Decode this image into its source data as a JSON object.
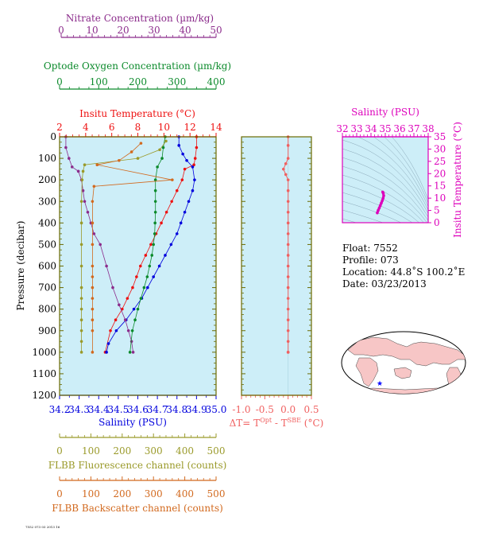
{
  "colors": {
    "nitrate": "#8b2b8b",
    "oxygen": "#0b8a2b",
    "temperature": "#ee1111",
    "salinity": "#0000dd",
    "fluorescence": "#9a9a2a",
    "backscatter": "#d2691e",
    "delta": "#f06060",
    "inset": "#dd00bb",
    "panel_bg": "#cdeef8",
    "frame": "#6a6a00"
  },
  "axes": {
    "nitrate": {
      "label": "Nitrate Concentration (µm/kg)",
      "ticks": [
        "0",
        "10",
        "20",
        "30",
        "40",
        "50"
      ]
    },
    "oxygen": {
      "label": "Optode Oxygen Concentration (µm/kg)",
      "ticks": [
        "0",
        "100",
        "200",
        "300",
        "400"
      ]
    },
    "temperature": {
      "label": "Insitu Temperature (°C)",
      "ticks": [
        "2",
        "4",
        "6",
        "8",
        "10",
        "12",
        "14"
      ]
    },
    "salinity": {
      "label": "Salinity (PSU)",
      "ticks": [
        "34.2",
        "34.3",
        "34.4",
        "34.5",
        "34.6",
        "34.7",
        "34.8",
        "34.9",
        "35.0"
      ]
    },
    "pressure": {
      "label": "Pressure (decibar)",
      "ticks": [
        "0",
        "100",
        "200",
        "300",
        "400",
        "500",
        "600",
        "700",
        "800",
        "900",
        "1000",
        "1100",
        "1200"
      ]
    },
    "fluorescence": {
      "label": "FLBB Fluorescence channel (counts)",
      "ticks": [
        "0",
        "100",
        "200",
        "300",
        "400",
        "500"
      ]
    },
    "backscatter": {
      "label": "FLBB Backscatter channel (counts)",
      "ticks": [
        "0",
        "100",
        "200",
        "300",
        "400",
        "500"
      ]
    },
    "delta": {
      "label_main": "ΔT= T",
      "label_sup1": "Opt",
      "label_mid": " - T",
      "label_sup2": "SBE",
      "label_end": " (°C)",
      "ticks": [
        "-1.0",
        "-0.5",
        "0.0",
        "0.5"
      ]
    },
    "inset_salinity": {
      "label": "Salinity (PSU)",
      "ticks": [
        "32",
        "33",
        "34",
        "35",
        "36",
        "37",
        "38"
      ]
    },
    "inset_temperature": {
      "label": "Insitu Temperature (°C)",
      "ticks": [
        "0",
        "5",
        "10",
        "15",
        "20",
        "25",
        "30",
        "35"
      ]
    }
  },
  "info": {
    "float": "Float:  7552",
    "profile": "Profile:  073",
    "location": "Location:  44.8˚S  100.2˚E",
    "date": "Date:  03/23/2013"
  },
  "footer_code": "7552 073 03 2013 16",
  "chart_data": [
    {
      "type": "line",
      "name": "main-profile",
      "ylabel": "Pressure (decibar)",
      "ylim": [
        1200,
        0
      ],
      "series": [
        {
          "name": "Insitu Temperature (°C)",
          "xlim": [
            2,
            14
          ],
          "x": [
            12.5,
            12.5,
            12.4,
            12.3,
            11.6,
            11.4,
            11.0,
            10.6,
            10.2,
            9.8,
            9.4,
            9.0,
            8.6,
            8.2,
            7.9,
            7.6,
            7.2,
            6.8,
            6.3,
            5.9,
            5.5
          ],
          "y": [
            0,
            50,
            100,
            130,
            150,
            200,
            250,
            300,
            350,
            400,
            450,
            500,
            550,
            600,
            650,
            700,
            750,
            800,
            850,
            900,
            1000
          ]
        },
        {
          "name": "Salinity (PSU)",
          "xlim": [
            34.2,
            35.0
          ],
          "x": [
            34.81,
            34.81,
            34.83,
            34.85,
            34.88,
            34.89,
            34.88,
            34.86,
            34.84,
            34.82,
            34.8,
            34.77,
            34.74,
            34.71,
            34.68,
            34.65,
            34.62,
            34.58,
            34.54,
            34.49,
            34.45,
            34.44
          ],
          "y": [
            0,
            40,
            80,
            110,
            140,
            200,
            250,
            300,
            350,
            400,
            450,
            500,
            550,
            600,
            650,
            700,
            750,
            800,
            850,
            900,
            960,
            1000
          ]
        },
        {
          "name": "Nitrate Concentration (µm/kg)",
          "xlim": [
            0,
            50
          ],
          "x": [
            2,
            2,
            3,
            4,
            6,
            7,
            7.5,
            8,
            9,
            10,
            11,
            13,
            15,
            17,
            19,
            21,
            22,
            23,
            23.5
          ],
          "y": [
            0,
            50,
            100,
            140,
            160,
            200,
            250,
            300,
            350,
            400,
            450,
            500,
            600,
            700,
            780,
            850,
            900,
            950,
            1000
          ]
        },
        {
          "name": "Optode Oxygen Concentration (µm/kg)",
          "xlim": [
            0,
            400
          ],
          "x": [
            270,
            265,
            262,
            250,
            245,
            245,
            245,
            245,
            244,
            243,
            240,
            236,
            230,
            224,
            216,
            208,
            200,
            193,
            186,
            180
          ],
          "y": [
            0,
            50,
            100,
            140,
            200,
            250,
            300,
            350,
            400,
            450,
            500,
            550,
            600,
            650,
            700,
            750,
            800,
            850,
            900,
            1000
          ]
        },
        {
          "name": "FLBB Fluorescence channel (counts)",
          "xlim": [
            0,
            500
          ],
          "x": [
            340,
            320,
            250,
            80,
            75,
            72,
            70,
            70,
            70,
            70,
            70,
            70,
            70,
            70,
            70,
            70,
            70
          ],
          "y": [
            20,
            60,
            100,
            130,
            160,
            200,
            300,
            400,
            500,
            600,
            700,
            750,
            800,
            850,
            900,
            950,
            1000
          ]
        },
        {
          "name": "FLBB Backscatter channel (counts)",
          "xlim": [
            0,
            500
          ],
          "x": [
            260,
            230,
            190,
            120,
            360,
            110,
            105,
            105,
            105,
            105,
            105,
            105,
            105,
            105,
            105,
            105,
            105
          ],
          "y": [
            30,
            70,
            110,
            130,
            200,
            230,
            300,
            400,
            500,
            600,
            650,
            700,
            750,
            800,
            850,
            900,
            1000
          ]
        }
      ]
    },
    {
      "type": "line",
      "name": "delta-t",
      "xlim": [
        -1.0,
        0.5
      ],
      "ylim": [
        1200,
        0
      ],
      "series": [
        {
          "name": "delta",
          "x": [
            0.0,
            0.0,
            0.0,
            -0.05,
            -0.1,
            -0.05,
            0.0,
            0.0,
            0.0,
            0.0,
            0.0,
            0.0,
            0.0,
            0.0,
            0.0,
            0.0,
            0.0,
            0.0,
            0.0,
            0.0,
            0.0,
            0.0,
            0.0,
            0.0
          ],
          "y": [
            0,
            40,
            100,
            125,
            150,
            175,
            200,
            250,
            300,
            350,
            400,
            450,
            500,
            550,
            600,
            650,
            700,
            750,
            800,
            850,
            900,
            950,
            1000,
            1000
          ]
        }
      ]
    },
    {
      "type": "line",
      "name": "t-s-inset",
      "xlim": [
        32,
        38
      ],
      "ylim": [
        0,
        35
      ],
      "series": [
        {
          "name": "t-s",
          "x": [
            34.44,
            34.5,
            34.58,
            34.65,
            34.72,
            34.79,
            34.85,
            34.89,
            34.86,
            34.82
          ],
          "y": [
            4.0,
            5.0,
            6.0,
            7.0,
            8.0,
            9.0,
            10.0,
            11.0,
            12.0,
            12.5
          ]
        }
      ]
    }
  ]
}
